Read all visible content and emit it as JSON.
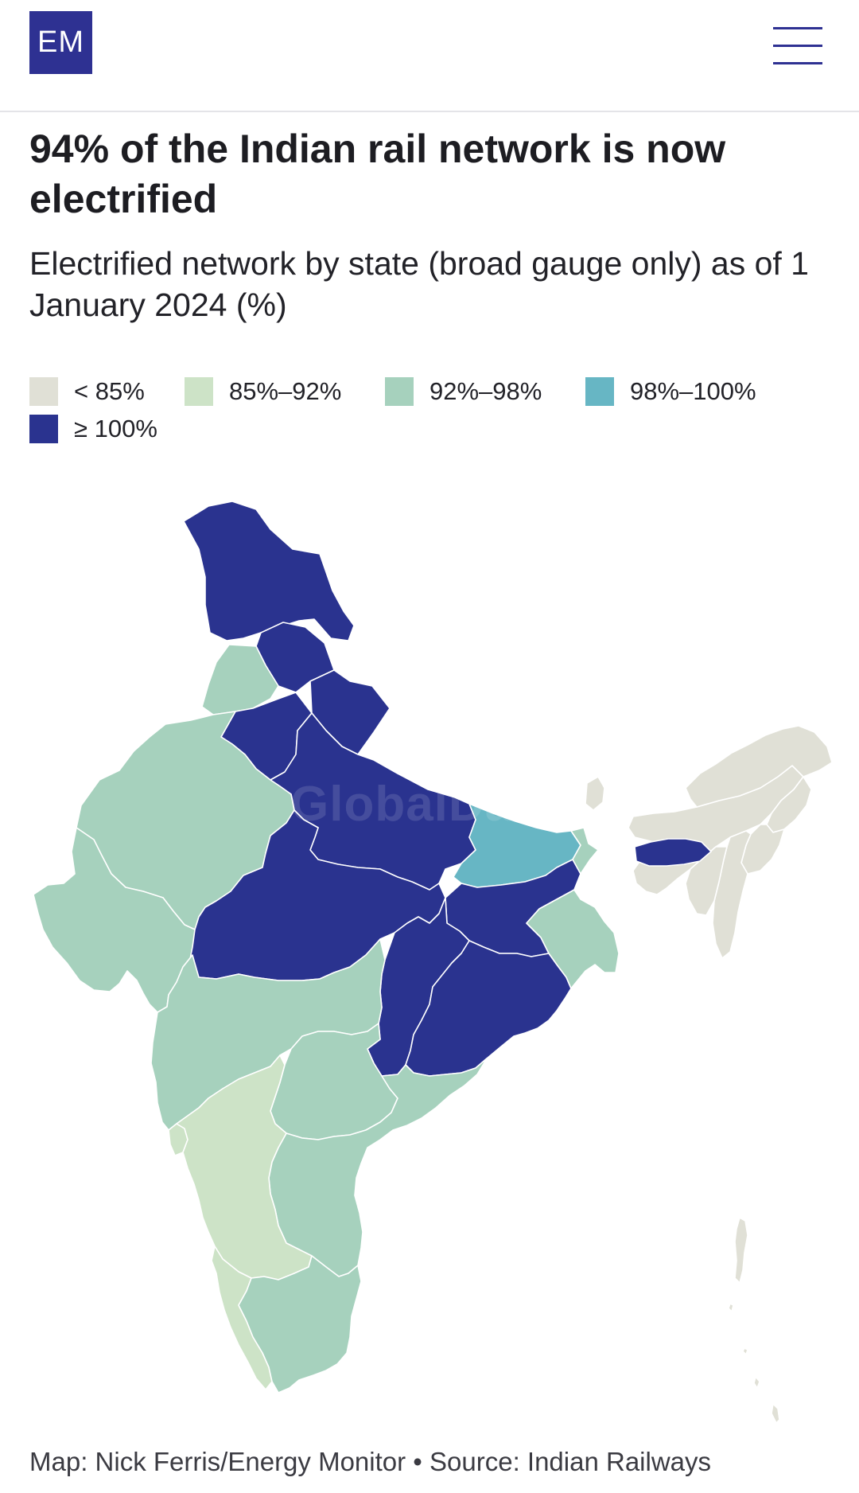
{
  "header": {
    "logo_text": "EM",
    "menu_icon": "hamburger-icon"
  },
  "title": "94% of the Indian rail network is now electrified",
  "subtitle": "Electrified network by state (broad gauge only) as of 1 January 2024 (%)",
  "legend": [
    {
      "label": "< 85%",
      "color": "#e0e0d6"
    },
    {
      "label": "85%–92%",
      "color": "#cde3c7"
    },
    {
      "label": "92%–98%",
      "color": "#a6d1bd"
    },
    {
      "label": "98%–100%",
      "color": "#67b6c4"
    },
    {
      "label": "≥ 100%",
      "color": "#2a338f"
    }
  ],
  "watermark": "GlobalData",
  "footer": "Map: Nick Ferris/Energy Monitor • Source: Indian Railways",
  "map_data": {
    "regions": [
      {
        "name": "jammu-kashmir",
        "class": "≥ 100%"
      },
      {
        "name": "himachal-pradesh",
        "class": "≥ 100%"
      },
      {
        "name": "punjab",
        "class": "92%–98%"
      },
      {
        "name": "haryana",
        "class": "≥ 100%"
      },
      {
        "name": "uttarakhand",
        "class": "≥ 100%"
      },
      {
        "name": "uttar-pradesh",
        "class": "≥ 100%"
      },
      {
        "name": "rajasthan",
        "class": "92%–98%"
      },
      {
        "name": "gujarat",
        "class": "92%–98%"
      },
      {
        "name": "madhya-pradesh",
        "class": "≥ 100%"
      },
      {
        "name": "bihar",
        "class": "98%–100%"
      },
      {
        "name": "jharkhand",
        "class": "≥ 100%"
      },
      {
        "name": "chhattisgarh",
        "class": "≥ 100%"
      },
      {
        "name": "odisha",
        "class": "≥ 100%"
      },
      {
        "name": "west-bengal",
        "class": "92%–98%"
      },
      {
        "name": "maharashtra",
        "class": "92%–98%"
      },
      {
        "name": "telangana",
        "class": "92%–98%"
      },
      {
        "name": "andhra-pradesh",
        "class": "92%–98%"
      },
      {
        "name": "karnataka",
        "class": "85%–92%"
      },
      {
        "name": "goa",
        "class": "85%–92%"
      },
      {
        "name": "kerala",
        "class": "85%–92%"
      },
      {
        "name": "tamil-nadu",
        "class": "92%–98%"
      },
      {
        "name": "sikkim",
        "class": "< 85%"
      },
      {
        "name": "assam",
        "class": "< 85%"
      },
      {
        "name": "arunachal-pradesh",
        "class": "< 85%"
      },
      {
        "name": "nagaland",
        "class": "< 85%"
      },
      {
        "name": "manipur",
        "class": "< 85%"
      },
      {
        "name": "mizoram",
        "class": "< 85%"
      },
      {
        "name": "tripura",
        "class": "< 85%"
      },
      {
        "name": "meghalaya",
        "class": "≥ 100%"
      },
      {
        "name": "andaman-nicobar",
        "class": "< 85%"
      }
    ]
  }
}
